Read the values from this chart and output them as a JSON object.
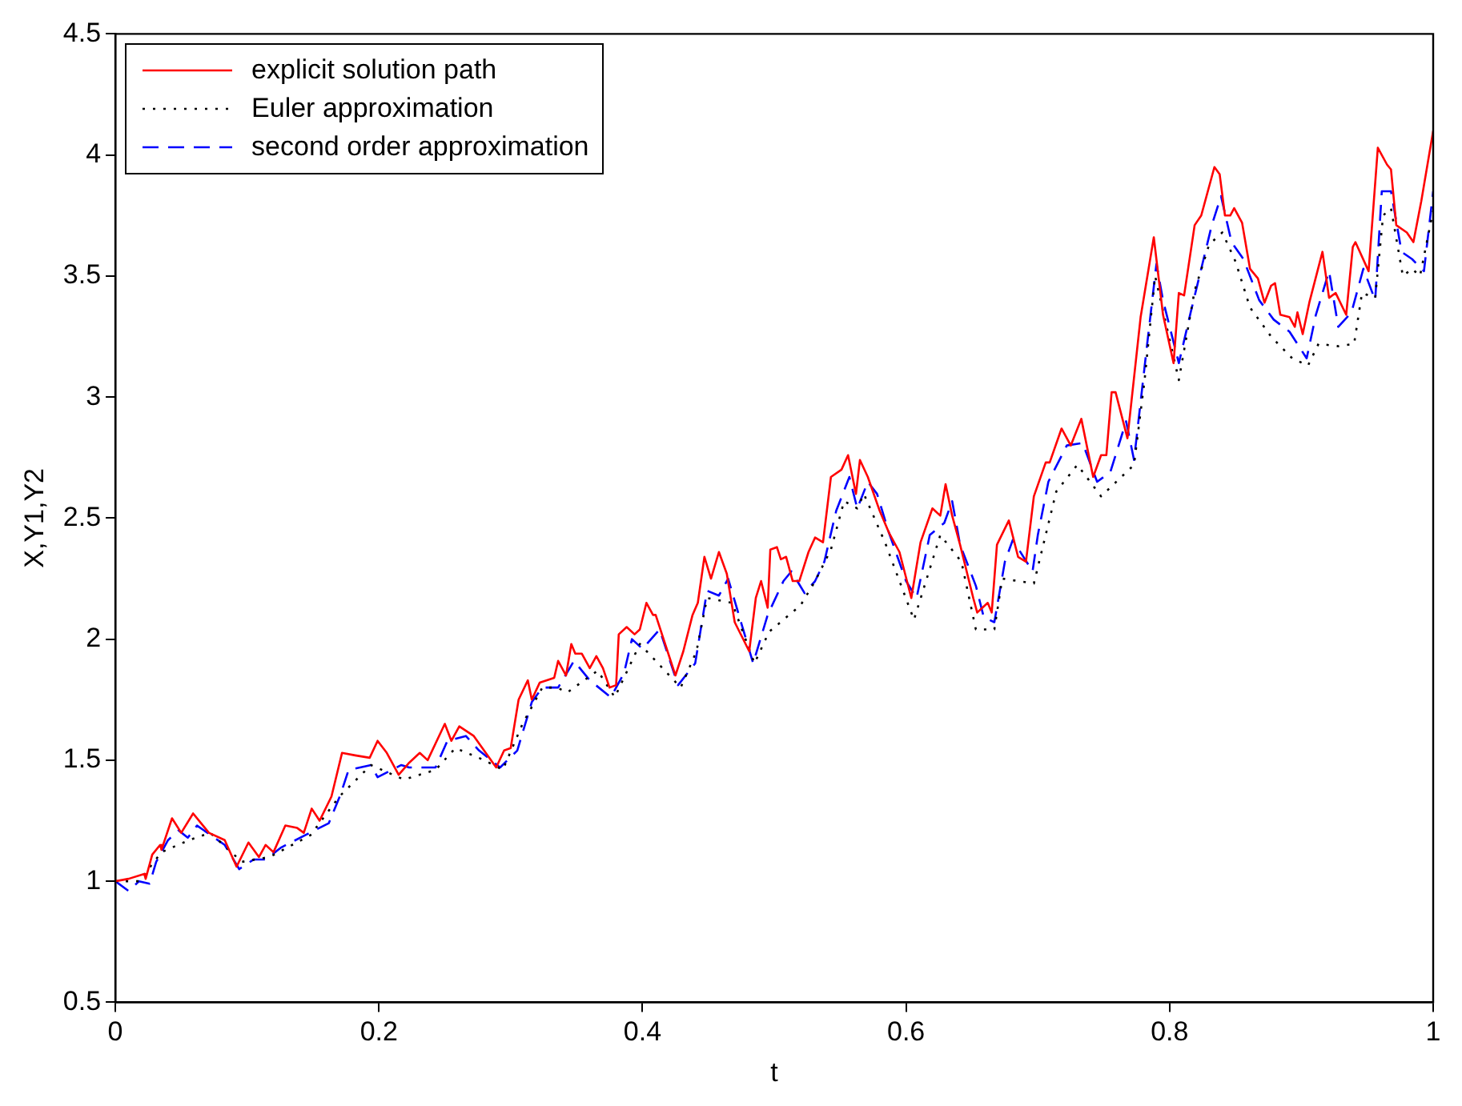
{
  "chart_data": {
    "type": "line",
    "xlabel": "t",
    "ylabel": "X,Y1,Y2",
    "xlim": [
      0,
      1
    ],
    "ylim": [
      0.5,
      4.5
    ],
    "xticks": [
      0,
      0.2,
      0.4,
      0.6,
      0.8,
      1
    ],
    "yticks": [
      0.5,
      1,
      1.5,
      2,
      2.5,
      3,
      3.5,
      4,
      4.5
    ],
    "grid": false,
    "legend": "top left",
    "marker": "none",
    "series": [
      {
        "name": "explicit solution path",
        "color": "#ff0000",
        "line_style": "solid",
        "x": [
          0,
          0.01,
          0.022,
          0.023,
          0.028,
          0.034,
          0.035,
          0.043,
          0.05,
          0.059,
          0.071,
          0.083,
          0.092,
          0.101,
          0.109,
          0.114,
          0.12,
          0.129,
          0.138,
          0.143,
          0.149,
          0.155,
          0.164,
          0.172,
          0.182,
          0.193,
          0.199,
          0.206,
          0.215,
          0.223,
          0.231,
          0.237,
          0.25,
          0.255,
          0.261,
          0.272,
          0.289,
          0.295,
          0.3,
          0.306,
          0.313,
          0.316,
          0.322,
          0.333,
          0.336,
          0.342,
          0.346,
          0.349,
          0.354,
          0.36,
          0.365,
          0.37,
          0.375,
          0.38,
          0.382,
          0.388,
          0.394,
          0.398,
          0.403,
          0.408,
          0.41,
          0.419,
          0.425,
          0.431,
          0.438,
          0.442,
          0.447,
          0.452,
          0.458,
          0.464,
          0.47,
          0.481,
          0.486,
          0.49,
          0.495,
          0.497,
          0.502,
          0.505,
          0.509,
          0.514,
          0.519,
          0.526,
          0.531,
          0.537,
          0.543,
          0.551,
          0.556,
          0.562,
          0.565,
          0.571,
          0.58,
          0.587,
          0.595,
          0.604,
          0.611,
          0.62,
          0.626,
          0.63,
          0.635,
          0.641,
          0.651,
          0.654,
          0.662,
          0.665,
          0.669,
          0.678,
          0.685,
          0.691,
          0.697,
          0.706,
          0.709,
          0.718,
          0.725,
          0.733,
          0.742,
          0.748,
          0.752,
          0.756,
          0.759,
          0.768,
          0.778,
          0.788,
          0.795,
          0.803,
          0.807,
          0.811,
          0.819,
          0.824,
          0.834,
          0.838,
          0.842,
          0.846,
          0.849,
          0.855,
          0.861,
          0.867,
          0.872,
          0.877,
          0.88,
          0.884,
          0.891,
          0.895,
          0.897,
          0.901,
          0.906,
          0.916,
          0.921,
          0.926,
          0.934,
          0.939,
          0.941,
          0.951,
          0.958,
          0.965,
          0.968,
          0.972,
          0.98,
          0.985,
          0.991,
          1.0
        ],
        "values": [
          1.0,
          1.01,
          1.03,
          1.01,
          1.11,
          1.15,
          1.13,
          1.26,
          1.2,
          1.28,
          1.2,
          1.17,
          1.06,
          1.16,
          1.1,
          1.15,
          1.12,
          1.23,
          1.22,
          1.2,
          1.3,
          1.25,
          1.35,
          1.53,
          1.52,
          1.51,
          1.58,
          1.53,
          1.44,
          1.49,
          1.53,
          1.5,
          1.65,
          1.58,
          1.64,
          1.6,
          1.47,
          1.54,
          1.55,
          1.75,
          1.83,
          1.75,
          1.82,
          1.84,
          1.91,
          1.85,
          1.98,
          1.94,
          1.94,
          1.88,
          1.93,
          1.88,
          1.8,
          1.81,
          2.02,
          2.05,
          2.02,
          2.04,
          2.15,
          2.1,
          2.1,
          1.95,
          1.85,
          1.95,
          2.1,
          2.15,
          2.34,
          2.25,
          2.36,
          2.27,
          2.07,
          1.95,
          2.17,
          2.24,
          2.13,
          2.37,
          2.38,
          2.33,
          2.34,
          2.24,
          2.24,
          2.36,
          2.42,
          2.4,
          2.67,
          2.7,
          2.76,
          2.6,
          2.74,
          2.67,
          2.53,
          2.44,
          2.36,
          2.17,
          2.4,
          2.54,
          2.51,
          2.64,
          2.51,
          2.39,
          2.17,
          2.11,
          2.15,
          2.11,
          2.39,
          2.49,
          2.34,
          2.32,
          2.59,
          2.73,
          2.73,
          2.87,
          2.8,
          2.91,
          2.67,
          2.76,
          2.76,
          3.02,
          3.02,
          2.83,
          3.33,
          3.66,
          3.34,
          3.14,
          3.43,
          3.42,
          3.71,
          3.75,
          3.95,
          3.92,
          3.75,
          3.75,
          3.78,
          3.72,
          3.53,
          3.49,
          3.39,
          3.46,
          3.47,
          3.34,
          3.33,
          3.29,
          3.35,
          3.26,
          3.39,
          3.6,
          3.41,
          3.43,
          3.34,
          3.62,
          3.64,
          3.52,
          4.03,
          3.96,
          3.94,
          3.71,
          3.68,
          3.64,
          3.81,
          4.1
        ]
      },
      {
        "name": "Euler approximation",
        "color": "#000000",
        "line_style": "dotted",
        "x": [
          0,
          0.018,
          0.035,
          0.056,
          0.072,
          0.096,
          0.117,
          0.148,
          0.17,
          0.194,
          0.219,
          0.243,
          0.258,
          0.28,
          0.294,
          0.309,
          0.324,
          0.335,
          0.343,
          0.366,
          0.379,
          0.398,
          0.429,
          0.441,
          0.449,
          0.468,
          0.485,
          0.496,
          0.52,
          0.531,
          0.543,
          0.553,
          0.563,
          0.568,
          0.584,
          0.606,
          0.626,
          0.642,
          0.653,
          0.667,
          0.673,
          0.697,
          0.714,
          0.73,
          0.748,
          0.773,
          0.781,
          0.789,
          0.807,
          0.819,
          0.83,
          0.84,
          0.85,
          0.861,
          0.877,
          0.893,
          0.905,
          0.913,
          0.928,
          0.94,
          0.946,
          0.956,
          0.962,
          0.968,
          0.977,
          0.984,
          0.99,
          1.0
        ],
        "values": [
          1.0,
          1.0,
          1.12,
          1.17,
          1.2,
          1.08,
          1.1,
          1.19,
          1.35,
          1.48,
          1.42,
          1.46,
          1.55,
          1.5,
          1.46,
          1.65,
          1.8,
          1.8,
          1.78,
          1.87,
          1.76,
          1.98,
          1.8,
          1.95,
          2.17,
          2.15,
          1.9,
          2.03,
          2.14,
          2.24,
          2.37,
          2.57,
          2.54,
          2.6,
          2.4,
          2.08,
          2.43,
          2.32,
          2.04,
          2.04,
          2.25,
          2.23,
          2.61,
          2.72,
          2.59,
          2.72,
          3.07,
          3.5,
          3.07,
          3.44,
          3.63,
          3.68,
          3.56,
          3.37,
          3.25,
          3.16,
          3.13,
          3.22,
          3.21,
          3.22,
          3.43,
          3.41,
          3.75,
          3.78,
          3.5,
          3.53,
          3.5,
          3.77
        ]
      },
      {
        "name": "second order approximation",
        "color": "#0000ff",
        "line_style": "dashed",
        "x": [
          0,
          0.01,
          0.018,
          0.026,
          0.031,
          0.035,
          0.04,
          0.048,
          0.055,
          0.062,
          0.083,
          0.094,
          0.105,
          0.114,
          0.126,
          0.144,
          0.162,
          0.171,
          0.177,
          0.194,
          0.199,
          0.217,
          0.223,
          0.243,
          0.252,
          0.266,
          0.276,
          0.292,
          0.305,
          0.316,
          0.324,
          0.336,
          0.348,
          0.36,
          0.376,
          0.386,
          0.392,
          0.4,
          0.413,
          0.427,
          0.44,
          0.449,
          0.458,
          0.465,
          0.484,
          0.495,
          0.507,
          0.513,
          0.523,
          0.531,
          0.538,
          0.547,
          0.557,
          0.563,
          0.571,
          0.578,
          0.587,
          0.6,
          0.608,
          0.618,
          0.629,
          0.635,
          0.641,
          0.653,
          0.659,
          0.667,
          0.675,
          0.681,
          0.696,
          0.7,
          0.708,
          0.722,
          0.734,
          0.745,
          0.755,
          0.767,
          0.773,
          0.783,
          0.79,
          0.795,
          0.807,
          0.816,
          0.832,
          0.839,
          0.847,
          0.856,
          0.868,
          0.879,
          0.891,
          0.904,
          0.911,
          0.921,
          0.928,
          0.938,
          0.947,
          0.956,
          0.961,
          0.968,
          0.976,
          0.984,
          0.993,
          1.0
        ],
        "values": [
          1.0,
          0.96,
          1.0,
          0.99,
          1.08,
          1.12,
          1.17,
          1.21,
          1.18,
          1.23,
          1.15,
          1.05,
          1.09,
          1.09,
          1.14,
          1.19,
          1.24,
          1.36,
          1.46,
          1.48,
          1.43,
          1.48,
          1.47,
          1.47,
          1.58,
          1.6,
          1.54,
          1.47,
          1.54,
          1.74,
          1.8,
          1.8,
          1.91,
          1.83,
          1.76,
          1.86,
          2.0,
          1.96,
          2.04,
          1.81,
          1.9,
          2.2,
          2.18,
          2.25,
          1.9,
          2.1,
          2.24,
          2.28,
          2.19,
          2.24,
          2.32,
          2.53,
          2.67,
          2.54,
          2.65,
          2.6,
          2.44,
          2.24,
          2.17,
          2.43,
          2.48,
          2.57,
          2.39,
          2.22,
          2.09,
          2.07,
          2.32,
          2.41,
          2.28,
          2.43,
          2.65,
          2.8,
          2.81,
          2.65,
          2.69,
          2.9,
          2.74,
          3.22,
          3.55,
          3.4,
          3.14,
          3.35,
          3.71,
          3.83,
          3.64,
          3.57,
          3.4,
          3.32,
          3.27,
          3.16,
          3.34,
          3.52,
          3.29,
          3.35,
          3.53,
          3.4,
          3.85,
          3.85,
          3.6,
          3.57,
          3.52,
          3.85
        ]
      }
    ]
  }
}
